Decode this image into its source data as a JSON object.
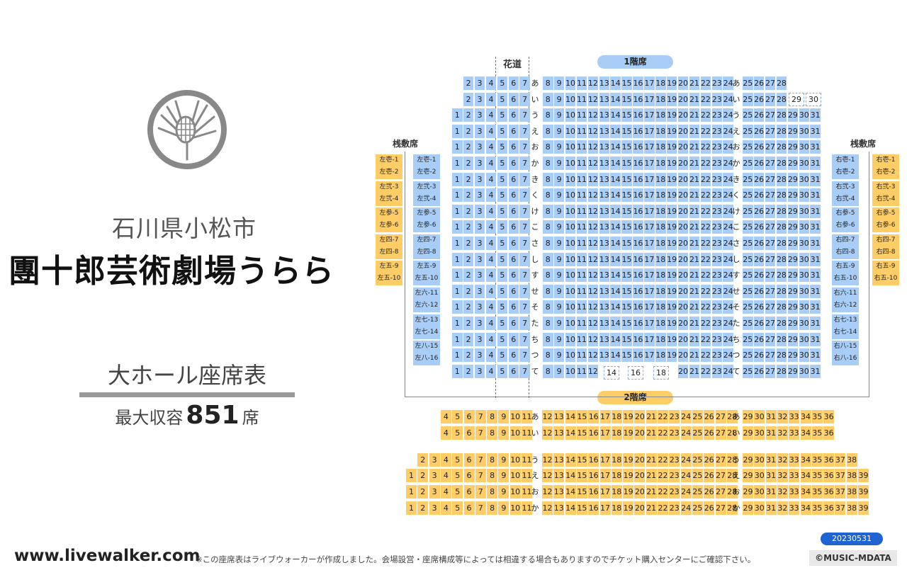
{
  "header": {
    "prefecture_city": "石川県小松市",
    "hall_name": "團十郎芸術劇場うらら",
    "seating_chart_title": "大ホール座席表",
    "capacity_label": "最大収容",
    "capacity_number": "851",
    "capacity_unit": "席"
  },
  "labels": {
    "hanamichi": "花道",
    "floor1": "1階席",
    "floor2": "2階席",
    "box_left": "桟敷席",
    "box_right": "桟敷席"
  },
  "footer": {
    "website": "www.livewalker.com",
    "note": "※この座席表はライブウォーカーが作成しました。会場設営・座席構成等によっては相違する場合もありますのでチケット購入センターにご確認下さい。",
    "version": "20230531",
    "copyright": "©MUSIC-MDATA"
  },
  "colors": {
    "floor1_seat": "#a8cdf7",
    "floor2_seat": "#ffcd66",
    "date_badge": "#1f64d2"
  },
  "logo_icon": "pine-cone-crest-icon",
  "floor1_rows": [
    {
      "row": "あ",
      "left": "2-7",
      "center": "8-24",
      "right": "25-28"
    },
    {
      "row": "い",
      "left": "2-7",
      "center": "8-24",
      "right": "25-28",
      "extra": [
        "29",
        "30"
      ]
    },
    {
      "row": "う",
      "left": "1-7",
      "center": "8-24",
      "right": "25-31"
    },
    {
      "row": "え",
      "left": "1-7",
      "center": "8-24",
      "right": "25-31"
    },
    {
      "row": "お",
      "left": "1-7",
      "center": "8-24",
      "right": "25-31"
    },
    {
      "row": "か",
      "left": "1-7",
      "center": "8-24",
      "right": "25-31"
    },
    {
      "row": "き",
      "left": "1-7",
      "center": "8-24",
      "right": "25-31"
    },
    {
      "row": "く",
      "left": "1-7",
      "center": "8-24",
      "right": "25-31"
    },
    {
      "row": "け",
      "left": "1-7",
      "center": "8-24",
      "right": "25-31"
    },
    {
      "row": "こ",
      "left": "1-7",
      "center": "8-24",
      "right": "25-31"
    },
    {
      "row": "さ",
      "left": "1-7",
      "center": "8-24",
      "right": "25-31"
    },
    {
      "row": "し",
      "left": "1-7",
      "center": "8-24",
      "right": "25-31"
    },
    {
      "row": "す",
      "left": "1-7",
      "center": "8-24",
      "right": "25-31"
    },
    {
      "row": "せ",
      "left": "1-7",
      "center": "8-24",
      "right": "25-31"
    },
    {
      "row": "そ",
      "left": "1-7",
      "center": "8-24",
      "right": "25-31"
    },
    {
      "row": "た",
      "left": "1-7",
      "center": "8-24",
      "right": "25-31"
    },
    {
      "row": "ち",
      "left": "1-7",
      "center": "8-24",
      "right": "25-31"
    },
    {
      "row": "つ",
      "left": "1-7",
      "center": "8-24",
      "right": "25-31"
    },
    {
      "row": "て",
      "left": "1-7",
      "center": "8-12",
      "right": "25-31",
      "center_open": [
        "14",
        "16",
        "18"
      ],
      "center2": "20-24"
    }
  ],
  "boxes_left_outer": [
    [
      "左壱-1",
      "左壱-2"
    ],
    [
      "左弐-3",
      "左弐-4"
    ],
    [
      "左参-5",
      "左参-6"
    ],
    [
      "左四-7",
      "左四-8"
    ],
    [
      "左五-9",
      "左五-10"
    ]
  ],
  "boxes_left_inner": [
    [
      "左壱-1",
      "左壱-2"
    ],
    [
      "左弐-3",
      "左弐-4"
    ],
    [
      "左参-5",
      "左参-6"
    ],
    [
      "左四-7",
      "左四-8"
    ],
    [
      "左五-9",
      "左五-10"
    ],
    [
      "左六-11",
      "左六-12"
    ],
    [
      "左七-13",
      "左七-14"
    ],
    [
      "左八-15",
      "左八-16"
    ]
  ],
  "boxes_right_inner": [
    [
      "右壱-1",
      "右壱-2"
    ],
    [
      "右弐-3",
      "右弐-4"
    ],
    [
      "右参-5",
      "右参-6"
    ],
    [
      "右四-7",
      "右四-8"
    ],
    [
      "右五-9",
      "右五-10"
    ],
    [
      "右六-11",
      "右六-12"
    ],
    [
      "右七-13",
      "右七-14"
    ],
    [
      "右八-15",
      "右八-16"
    ]
  ],
  "boxes_right_outer": [
    [
      "右壱-1",
      "右壱-2"
    ],
    [
      "右弐-3",
      "右弐-4"
    ],
    [
      "右参-5",
      "右参-6"
    ],
    [
      "右四-7",
      "右四-8"
    ],
    [
      "右五-9",
      "右五-10"
    ]
  ],
  "floor2_rows": [
    {
      "row": "あ",
      "left": "4-11",
      "center": "12-28",
      "right": "29-36"
    },
    {
      "row": "い",
      "left": "4-11",
      "center": "12-28",
      "right": "29-36"
    },
    {
      "row": "う",
      "left": "2-11",
      "center": "12-28",
      "right": "29-38"
    },
    {
      "row": "え",
      "left": "1-11",
      "center": "12-28",
      "right": "29-39"
    },
    {
      "row": "お",
      "left": "1-11",
      "center": "12-28",
      "right": "29-39"
    },
    {
      "row": "か",
      "left": "1-11",
      "center": "12-28",
      "right": "29-39"
    }
  ]
}
